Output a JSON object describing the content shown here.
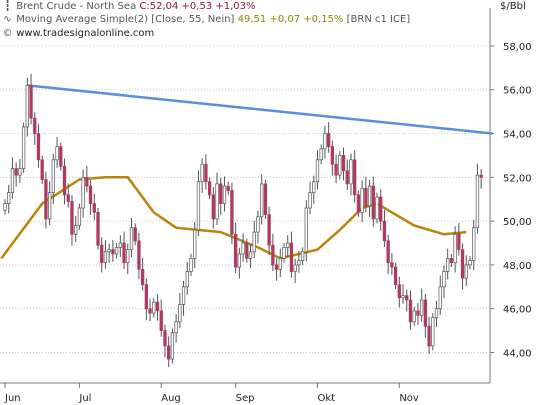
{
  "legend": {
    "line1_name": "Brent Crude - North Sea",
    "line1_values": "C:52,04 +0,53 +1,03%",
    "line2_name": "Moving Average Simple(2) [Close, 55, Nein]",
    "line2_values": "49,51 +0,07 +0,15%",
    "line2_suffix": "[BRN c1 ICE]",
    "line3": "www.tradesignalonline.com"
  },
  "icons": {
    "line1": "candlestick-icon",
    "line2": "curve-icon",
    "line3": "copyright-icon"
  },
  "unit": "$/Bbl",
  "colors": {
    "up": "#ffffff",
    "down": "#b03a5b",
    "wick": "#555555",
    "ma": "#b8860b",
    "trend": "#5b8fdc",
    "grid": "#c8c8c8",
    "axis": "#777777"
  },
  "chart_data": {
    "type": "candlestick",
    "series_name": "Brent Crude - North Sea",
    "xlabels": [
      "Jun",
      "Jul",
      "Aug",
      "Sep",
      "Okt",
      "Nov"
    ],
    "ylabels": [
      "44,00",
      "46,00",
      "48,00",
      "50,00",
      "52,00",
      "54,00",
      "56,00",
      "58,00"
    ],
    "ylim": [
      42.7,
      59.7
    ],
    "grid": "horizontal dotted",
    "month_starts": [
      0,
      20,
      42,
      62,
      84,
      106
    ],
    "close": [
      50.8,
      51.3,
      52.4,
      52.1,
      52.4,
      54.3,
      56.2,
      54.7,
      54.0,
      52.8,
      51.9,
      50.1,
      51.3,
      52.8,
      53.4,
      52.5,
      51.2,
      50.9,
      49.4,
      49.8,
      50.6,
      52.0,
      51.6,
      50.8,
      50.4,
      48.9,
      48.1,
      48.6,
      48.7,
      48.5,
      48.8,
      49.0,
      48.1,
      48.7,
      49.7,
      49.1,
      47.8,
      47.1,
      46.0,
      45.8,
      46.3,
      45.9,
      45.0,
      44.3,
      43.7,
      44.9,
      45.4,
      46.2,
      47.0,
      47.7,
      48.3,
      49.6,
      51.8,
      52.6,
      51.8,
      51.2,
      50.1,
      51.7,
      50.8,
      51.6,
      51.4,
      49.4,
      47.9,
      48.5,
      49.0,
      48.3,
      48.6,
      49.5,
      50.2,
      51.7,
      50.3,
      48.9,
      48.0,
      47.8,
      48.3,
      48.8,
      49.0,
      47.7,
      48.0,
      48.2,
      48.6,
      50.6,
      51.3,
      51.8,
      52.8,
      53.3,
      54.0,
      53.4,
      52.6,
      52.1,
      53.0,
      52.3,
      51.7,
      52.8,
      51.2,
      50.4,
      51.5,
      50.7,
      51.6,
      50.1,
      51.1,
      50.0,
      49.1,
      48.1,
      47.9,
      47.1,
      46.5,
      46.6,
      46.4,
      45.4,
      45.9,
      45.7,
      46.4,
      45.2,
      44.3,
      45.6,
      46.0,
      47.0,
      47.7,
      48.3,
      48.1,
      49.4,
      48.7,
      47.4,
      48.0,
      48.2,
      49.7,
      52.1,
      52.0
    ],
    "overlays": [
      {
        "name": "Moving Average Simple(2)",
        "type": "line",
        "points": [
          [
            -1,
            48.3
          ],
          [
            10,
            50.8
          ],
          [
            20,
            51.9
          ],
          [
            27,
            52.0
          ],
          [
            33,
            52.0
          ],
          [
            40,
            50.4
          ],
          [
            46,
            49.7
          ],
          [
            58,
            49.5
          ],
          [
            68,
            48.8
          ],
          [
            74,
            48.3
          ],
          [
            84,
            48.7
          ],
          [
            90,
            49.6
          ],
          [
            96,
            50.6
          ],
          [
            100,
            50.8
          ],
          [
            104,
            50.4
          ],
          [
            110,
            49.8
          ],
          [
            118,
            49.4
          ],
          [
            124,
            49.5
          ]
        ]
      },
      {
        "name": "trendline",
        "type": "line",
        "points": [
          [
            6,
            56.2
          ],
          [
            131,
            54.0
          ]
        ]
      }
    ]
  }
}
